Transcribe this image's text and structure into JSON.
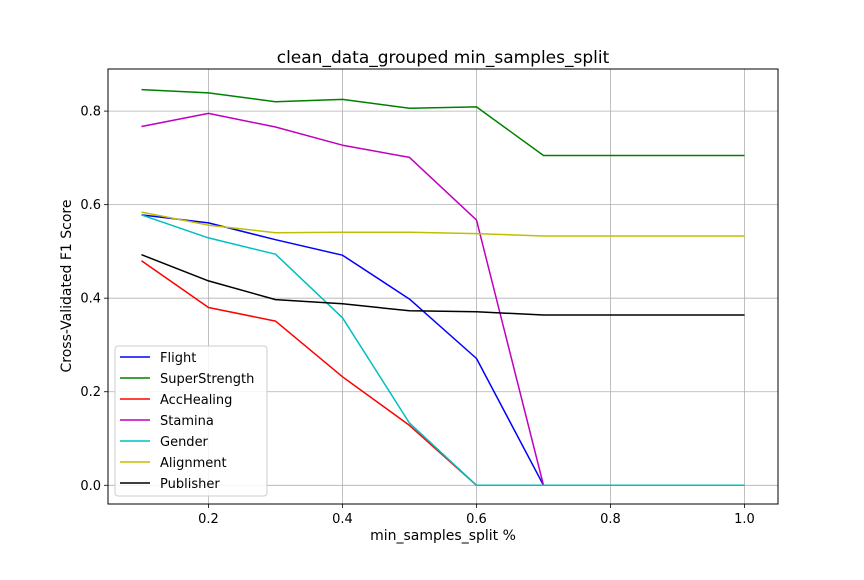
{
  "chart_data": {
    "type": "line",
    "title": "clean_data_grouped min_samples_split",
    "xlabel": "min_samples_split %",
    "ylabel": "Cross-Validated F1 Score",
    "xlim": [
      0.05,
      1.05
    ],
    "ylim": [
      -0.04,
      0.89
    ],
    "x_ticks": [
      0.2,
      0.4,
      0.6,
      0.8,
      1.0
    ],
    "x_tick_labels": [
      "0.2",
      "0.4",
      "0.6",
      "0.8",
      "1.0"
    ],
    "y_ticks": [
      0.0,
      0.2,
      0.4,
      0.6,
      0.8
    ],
    "y_tick_labels": [
      "0.0",
      "0.2",
      "0.4",
      "0.6",
      "0.8"
    ],
    "grid": true,
    "legend_position": "lower-left",
    "x": [
      0.1,
      0.2,
      0.3,
      0.4,
      0.5,
      0.6,
      0.7,
      0.8,
      0.9,
      1.0
    ],
    "series": [
      {
        "name": "Flight",
        "color": "#0000ff",
        "values": [
          0.578,
          0.561,
          0.525,
          0.492,
          0.398,
          0.271,
          0.0,
          0.0,
          0.0,
          0.0
        ]
      },
      {
        "name": "SuperStrength",
        "color": "#008000",
        "values": [
          0.846,
          0.839,
          0.82,
          0.825,
          0.806,
          0.809,
          0.705,
          0.705,
          0.705,
          0.705
        ]
      },
      {
        "name": "AccHealing",
        "color": "#ff0000",
        "values": [
          0.48,
          0.38,
          0.351,
          0.232,
          0.128,
          0.0,
          0.0,
          0.0,
          0.0,
          0.0
        ]
      },
      {
        "name": "Stamina",
        "color": "#bf00bf",
        "values": [
          0.767,
          0.795,
          0.766,
          0.727,
          0.701,
          0.567,
          0.0,
          0.0,
          0.0,
          0.0
        ]
      },
      {
        "name": "Gender",
        "color": "#00bfbf",
        "values": [
          0.578,
          0.529,
          0.494,
          0.358,
          0.133,
          0.0,
          0.0,
          0.0,
          0.0,
          0.0
        ]
      },
      {
        "name": "Alignment",
        "color": "#bfbf00",
        "values": [
          0.584,
          0.556,
          0.54,
          0.541,
          0.541,
          0.538,
          0.533,
          0.533,
          0.533,
          0.533
        ]
      },
      {
        "name": "Publisher",
        "color": "#000000",
        "values": [
          0.493,
          0.437,
          0.397,
          0.388,
          0.373,
          0.371,
          0.364,
          0.364,
          0.364,
          0.364
        ]
      }
    ]
  }
}
